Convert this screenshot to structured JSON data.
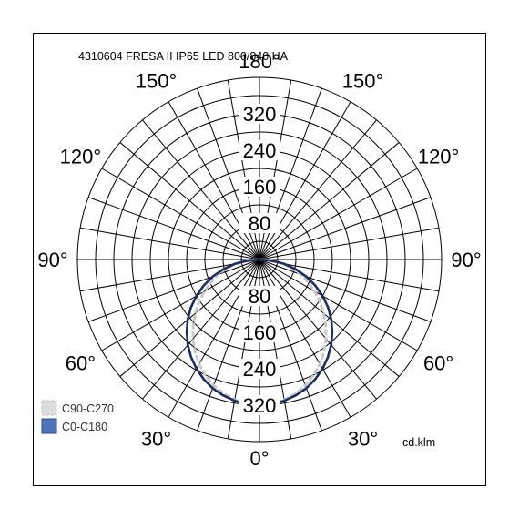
{
  "chart_data": {
    "type": "polar",
    "title": "4310604 FRESA II IP65 LED 800/840 HA",
    "unit": "cd.klm",
    "rings": [
      80,
      160,
      240,
      320
    ],
    "ring_labels": [
      "80",
      "160",
      "240",
      "320"
    ],
    "r_max": 400,
    "angle_labels": [
      {
        "text": "180°",
        "deg": 180
      },
      {
        "text": "150°",
        "deg": 150
      },
      {
        "text": "150°",
        "deg": -150
      },
      {
        "text": "120°",
        "deg": 120
      },
      {
        "text": "120°",
        "deg": -120
      },
      {
        "text": "90°",
        "deg": 90
      },
      {
        "text": "90°",
        "deg": -90
      },
      {
        "text": "60°",
        "deg": 60
      },
      {
        "text": "60°",
        "deg": -60
      },
      {
        "text": "30°",
        "deg": 30
      },
      {
        "text": "30°",
        "deg": -30
      },
      {
        "text": "0°",
        "deg": 0
      }
    ],
    "legend_position": "bottom-left",
    "series": [
      {
        "name": "C90-C270",
        "color": "#c8c8c8",
        "legend_fill": "#dcdcdc",
        "dashed": true,
        "angles": [
          0,
          5,
          10,
          15,
          20,
          25,
          30,
          35,
          40,
          45,
          50,
          55,
          60,
          65,
          70,
          75,
          80,
          85,
          90
        ],
        "values": [
          320,
          318,
          313,
          305,
          294,
          281,
          265,
          247,
          227,
          206,
          184,
          162,
          140,
          118,
          97,
          75,
          52,
          28,
          8
        ]
      },
      {
        "name": "C0-C180",
        "color": "#1f2d5c",
        "legend_fill": "#4f74b8",
        "dashed": false,
        "angles": [
          0,
          5,
          10,
          15,
          20,
          25,
          30,
          35,
          40,
          45,
          50,
          55,
          60,
          65,
          70,
          75,
          80,
          85,
          90
        ],
        "values": [
          320,
          319,
          315,
          309,
          301,
          290,
          277,
          262,
          245,
          226,
          206,
          184,
          160,
          135,
          109,
          82,
          55,
          27,
          4
        ]
      }
    ]
  }
}
